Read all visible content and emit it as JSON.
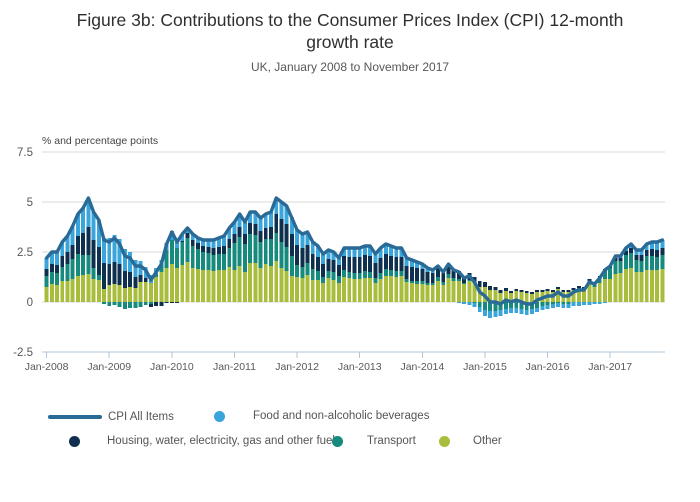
{
  "header": {
    "title_line1": "Figure 3b: Contributions to the Consumer Prices Index (CPI) 12-month",
    "title_line2": "growth rate",
    "subtitle": "UK, January 2008 to November 2017"
  },
  "chart_data": {
    "type": "bar",
    "subtype": "stacked-bars-with-line-overlay",
    "unit_label": "% and percentage points",
    "ylim": [
      -2.5,
      7.5
    ],
    "y_tick_values": [
      7.5,
      5,
      2.5,
      0,
      -2.5
    ],
    "y_tick_labels": [
      "7.5",
      "5",
      "2.5",
      "0",
      "-2.5"
    ],
    "x_tick_labels": [
      "Jan-2008",
      "Jan-2009",
      "Jan-2010",
      "Jan-2011",
      "Jan-2012",
      "Jan-2013",
      "Jan-2014",
      "Jan-2015",
      "Jan-2016",
      "Jan-2017"
    ],
    "x_tick_month_indices": [
      0,
      12,
      24,
      36,
      48,
      60,
      72,
      84,
      96,
      108
    ],
    "n_months": 119,
    "grid": true,
    "legend_position": "bottom",
    "axis_color": "#b2c6d6",
    "grid_color": "#d9d9d9",
    "line": {
      "name": "CPI All Items",
      "color": "#2a6a96",
      "values": [
        2.2,
        2.5,
        2.5,
        3.0,
        3.3,
        3.8,
        4.4,
        4.7,
        5.2,
        4.5,
        4.1,
        3.1,
        3.0,
        3.2,
        2.9,
        2.3,
        2.2,
        1.8,
        1.8,
        1.6,
        1.1,
        1.5,
        1.9,
        2.9,
        3.5,
        3.0,
        3.4,
        3.7,
        3.4,
        3.2,
        3.1,
        3.1,
        3.1,
        3.2,
        3.3,
        3.7,
        4.0,
        4.4,
        4.0,
        4.5,
        4.5,
        4.2,
        4.4,
        4.5,
        5.2,
        5.0,
        4.8,
        4.2,
        3.6,
        3.4,
        3.5,
        3.0,
        2.8,
        2.4,
        2.6,
        2.5,
        2.2,
        2.7,
        2.7,
        2.7,
        2.7,
        2.8,
        2.8,
        2.4,
        2.7,
        2.9,
        2.8,
        2.7,
        2.7,
        2.2,
        2.1,
        2.0,
        1.9,
        1.7,
        1.6,
        1.8,
        1.5,
        1.9,
        1.6,
        1.5,
        1.2,
        1.3,
        1.0,
        0.5,
        0.3,
        0.0,
        0.0,
        -0.1,
        0.1,
        0.0,
        0.1,
        0.0,
        -0.1,
        -0.1,
        0.1,
        0.2,
        0.3,
        0.3,
        0.5,
        0.3,
        0.3,
        0.5,
        0.6,
        0.6,
        1.0,
        0.9,
        1.2,
        1.6,
        1.8,
        2.3,
        2.3,
        2.7,
        2.9,
        2.6,
        2.6,
        2.9,
        3.0,
        3.0,
        3.1
      ]
    },
    "bar_series": [
      {
        "name": "Food and non-alcoholic beverages",
        "color": "#3aa5da",
        "values": [
          0.55,
          0.6,
          0.65,
          0.7,
          0.8,
          0.95,
          1.1,
          1.25,
          1.45,
          1.4,
          1.35,
          1.25,
          1.3,
          1.35,
          1.25,
          1.1,
          1.0,
          0.85,
          0.7,
          0.55,
          0.4,
          0.3,
          0.25,
          0.35,
          0.45,
          0.35,
          0.3,
          0.25,
          0.3,
          0.25,
          0.3,
          0.35,
          0.4,
          0.45,
          0.5,
          0.55,
          0.6,
          0.65,
          0.6,
          0.55,
          0.6,
          0.65,
          0.7,
          0.75,
          0.8,
          0.85,
          0.9,
          0.85,
          0.75,
          0.7,
          0.65,
          0.6,
          0.55,
          0.5,
          0.45,
          0.4,
          0.35,
          0.4,
          0.45,
          0.45,
          0.45,
          0.45,
          0.5,
          0.45,
          0.5,
          0.5,
          0.5,
          0.45,
          0.45,
          0.4,
          0.35,
          0.3,
          0.25,
          0.2,
          0.15,
          0.1,
          0.05,
          0.05,
          0.0,
          -0.05,
          -0.1,
          -0.15,
          -0.2,
          -0.25,
          -0.3,
          -0.35,
          -0.3,
          -0.3,
          -0.25,
          -0.25,
          -0.25,
          -0.25,
          -0.25,
          -0.25,
          -0.2,
          -0.2,
          -0.2,
          -0.2,
          -0.2,
          -0.2,
          -0.2,
          -0.2,
          -0.2,
          -0.15,
          -0.15,
          -0.1,
          -0.1,
          -0.05,
          0.0,
          0.1,
          0.1,
          0.15,
          0.2,
          0.25,
          0.25,
          0.3,
          0.35,
          0.4,
          0.4
        ]
      },
      {
        "name": "Housing, water, electricity, gas and other fuels",
        "color": "#0e2f4e",
        "values": [
          0.35,
          0.4,
          0.4,
          0.55,
          0.6,
          0.7,
          0.9,
          1.1,
          1.4,
          1.4,
          1.4,
          1.3,
          1.05,
          1.1,
          1.05,
          0.85,
          0.75,
          0.55,
          0.35,
          0.2,
          -0.15,
          -0.2,
          -0.2,
          -0.05,
          -0.05,
          -0.05,
          0.05,
          0.25,
          0.3,
          0.3,
          0.3,
          0.3,
          0.35,
          0.35,
          0.4,
          0.45,
          0.45,
          0.5,
          0.5,
          0.55,
          0.55,
          0.55,
          0.55,
          0.6,
          0.95,
          1.15,
          1.15,
          1.1,
          1.0,
          0.95,
          0.9,
          0.75,
          0.7,
          0.65,
          0.6,
          0.6,
          0.55,
          0.7,
          0.75,
          0.8,
          0.8,
          0.8,
          0.8,
          0.75,
          0.75,
          0.75,
          0.7,
          0.7,
          0.7,
          0.65,
          0.7,
          0.65,
          0.6,
          0.55,
          0.5,
          0.45,
          0.45,
          0.45,
          0.4,
          0.4,
          0.35,
          0.35,
          0.3,
          0.3,
          0.25,
          0.2,
          0.15,
          0.15,
          0.15,
          0.1,
          0.1,
          0.1,
          0.1,
          0.1,
          0.1,
          0.1,
          0.1,
          0.1,
          0.1,
          0.1,
          0.1,
          0.1,
          0.1,
          0.1,
          0.1,
          0.1,
          0.1,
          0.1,
          0.1,
          0.15,
          0.15,
          0.2,
          0.25,
          0.25,
          0.3,
          0.3,
          0.35,
          0.35,
          0.35
        ]
      },
      {
        "name": "Transport",
        "color": "#168a7d",
        "values": [
          0.55,
          0.6,
          0.6,
          0.7,
          0.85,
          1.0,
          1.1,
          1.0,
          0.95,
          0.55,
          0.25,
          -0.1,
          -0.2,
          -0.15,
          -0.25,
          -0.35,
          -0.3,
          -0.3,
          -0.25,
          -0.15,
          -0.1,
          0.15,
          0.35,
          0.9,
          1.2,
          1.0,
          1.15,
          1.2,
          1.1,
          1.0,
          0.9,
          0.85,
          0.8,
          0.8,
          0.8,
          0.95,
          1.35,
          1.45,
          1.4,
          1.45,
          1.4,
          1.3,
          1.25,
          1.35,
          1.4,
          1.3,
          1.2,
          1.0,
          0.6,
          0.55,
          0.6,
          0.55,
          0.45,
          0.3,
          0.35,
          0.4,
          0.35,
          0.35,
          0.3,
          0.3,
          0.3,
          0.35,
          0.3,
          0.25,
          0.3,
          0.35,
          0.3,
          0.3,
          0.25,
          0.15,
          0.1,
          0.15,
          0.15,
          0.1,
          0.1,
          0.2,
          0.15,
          0.2,
          0.15,
          0.1,
          0.05,
          0.05,
          -0.05,
          -0.25,
          -0.4,
          -0.45,
          -0.45,
          -0.4,
          -0.35,
          -0.3,
          -0.3,
          -0.35,
          -0.4,
          -0.35,
          -0.3,
          -0.2,
          -0.15,
          -0.1,
          -0.05,
          -0.1,
          -0.1,
          0.0,
          0.05,
          0.05,
          0.15,
          0.15,
          0.25,
          0.4,
          0.55,
          0.65,
          0.6,
          0.7,
          0.75,
          0.6,
          0.55,
          0.7,
          0.7,
          0.65,
          0.7
        ]
      },
      {
        "name": "Other",
        "color": "#a9bd3d",
        "values": [
          0.75,
          0.9,
          0.85,
          1.05,
          1.05,
          1.15,
          1.3,
          1.35,
          1.4,
          1.15,
          1.1,
          0.65,
          0.85,
          0.9,
          0.85,
          0.7,
          0.75,
          0.7,
          1.0,
          1.0,
          0.95,
          1.25,
          1.5,
          1.7,
          1.9,
          1.7,
          1.85,
          2.0,
          1.7,
          1.65,
          1.6,
          1.6,
          1.55,
          1.6,
          1.6,
          1.75,
          1.6,
          1.8,
          1.5,
          1.95,
          1.95,
          1.7,
          1.9,
          1.8,
          2.05,
          1.7,
          1.55,
          1.3,
          1.25,
          1.2,
          1.35,
          1.1,
          1.1,
          0.95,
          1.2,
          1.1,
          0.95,
          1.25,
          1.2,
          1.15,
          1.15,
          1.2,
          1.2,
          0.95,
          1.15,
          1.3,
          1.3,
          1.25,
          1.3,
          1.0,
          0.95,
          0.9,
          0.9,
          0.85,
          0.85,
          1.05,
          0.85,
          1.2,
          1.05,
          1.05,
          0.9,
          1.05,
          0.95,
          0.75,
          0.75,
          0.6,
          0.6,
          0.45,
          0.55,
          0.45,
          0.55,
          0.5,
          0.45,
          0.4,
          0.5,
          0.5,
          0.55,
          0.5,
          0.65,
          0.5,
          0.5,
          0.6,
          0.65,
          0.6,
          0.9,
          0.75,
          0.95,
          1.15,
          1.15,
          1.4,
          1.45,
          1.65,
          1.7,
          1.5,
          1.5,
          1.6,
          1.6,
          1.6,
          1.65
        ]
      }
    ],
    "stack_order_bottom_to_top": [
      3,
      2,
      1,
      0
    ]
  }
}
